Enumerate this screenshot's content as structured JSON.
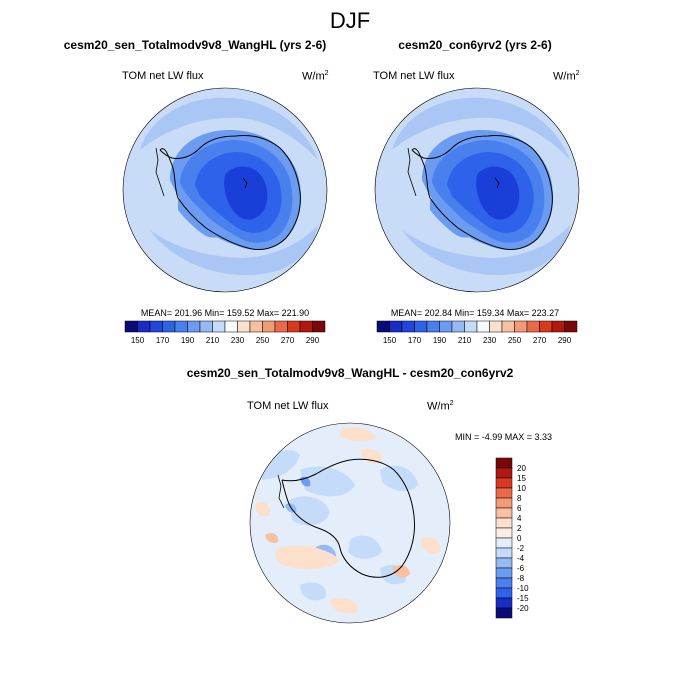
{
  "title": "DJF",
  "panels": [
    {
      "case_title": "cesm20_sen_Totalmodv9v8_WangHL (yrs 2-6)",
      "variable": "TOM net LW flux",
      "units_base": "W/m",
      "units_exp": "2",
      "stats": "MEAN= 201.96  Min= 159.52  Max= 221.90"
    },
    {
      "case_title": "cesm20_con6yrv2 (yrs 2-6)",
      "variable": "TOM net LW flux",
      "units_base": "W/m",
      "units_exp": "2",
      "stats": "MEAN= 202.84  Min= 159.34  Max= 223.27"
    }
  ],
  "diff_panel": {
    "title": "cesm20_sen_Totalmodv9v8_WangHL - cesm20_con6yrv2",
    "variable": "TOM net LW flux",
    "units_base": "W/m",
    "units_exp": "2",
    "stats": "MIN =  -4.99 MAX =   3.33"
  },
  "chart_data": [
    {
      "type": "heatmap",
      "projection": "south-polar-stereographic",
      "title": "cesm20_sen_Totalmodv9v8_WangHL (yrs 2-6)",
      "variable": "TOM net LW flux",
      "units": "W/m2",
      "mean": 201.96,
      "min": 159.52,
      "max": 221.9,
      "colorbar": {
        "orientation": "horizontal",
        "levels": [
          150,
          160,
          170,
          180,
          190,
          200,
          210,
          220,
          230,
          240,
          250,
          260,
          270,
          280,
          290
        ],
        "tick_labels": [
          "150",
          "170",
          "190",
          "210",
          "230",
          "250",
          "270",
          "290"
        ],
        "colors": [
          "#0a0a78",
          "#1a2cc8",
          "#2246dc",
          "#2f62ea",
          "#4a80ee",
          "#6c9cf2",
          "#95b9f4",
          "#c5dbfa",
          "#f6fbff",
          "#fde0cc",
          "#f7c0a0",
          "#f29a74",
          "#ea6a48",
          "#d83a20",
          "#b01810",
          "#7a0808"
        ]
      }
    },
    {
      "type": "heatmap",
      "projection": "south-polar-stereographic",
      "title": "cesm20_con6yrv2 (yrs 2-6)",
      "variable": "TOM net LW flux",
      "units": "W/m2",
      "mean": 202.84,
      "min": 159.34,
      "max": 223.27,
      "colorbar": {
        "orientation": "horizontal",
        "levels": [
          150,
          160,
          170,
          180,
          190,
          200,
          210,
          220,
          230,
          240,
          250,
          260,
          270,
          280,
          290
        ],
        "tick_labels": [
          "150",
          "170",
          "190",
          "210",
          "230",
          "250",
          "270",
          "290"
        ],
        "colors": [
          "#0a0a78",
          "#1a2cc8",
          "#2246dc",
          "#2f62ea",
          "#4a80ee",
          "#6c9cf2",
          "#95b9f4",
          "#c5dbfa",
          "#f6fbff",
          "#fde0cc",
          "#f7c0a0",
          "#f29a74",
          "#ea6a48",
          "#d83a20",
          "#b01810",
          "#7a0808"
        ]
      }
    },
    {
      "type": "heatmap",
      "projection": "south-polar-stereographic",
      "title": "cesm20_sen_Totalmodv9v8_WangHL - cesm20_con6yrv2",
      "variable": "TOM net LW flux",
      "units": "W/m2",
      "min": -4.99,
      "max": 3.33,
      "colorbar": {
        "orientation": "vertical",
        "tick_labels": [
          "20",
          "15",
          "10",
          "8",
          "6",
          "4",
          "2",
          "0",
          "-2",
          "-4",
          "-6",
          "-8",
          "-10",
          "-15",
          "-20"
        ],
        "colors": [
          "#7a0808",
          "#b01810",
          "#d83a20",
          "#ea6a48",
          "#f29a74",
          "#f7c0a0",
          "#fde0cc",
          "#fdeee4",
          "#e4eefb",
          "#c5dbfa",
          "#95b9f4",
          "#6c9cf2",
          "#4a80ee",
          "#2f62ea",
          "#1a2cc8",
          "#0a0a78"
        ]
      }
    }
  ]
}
